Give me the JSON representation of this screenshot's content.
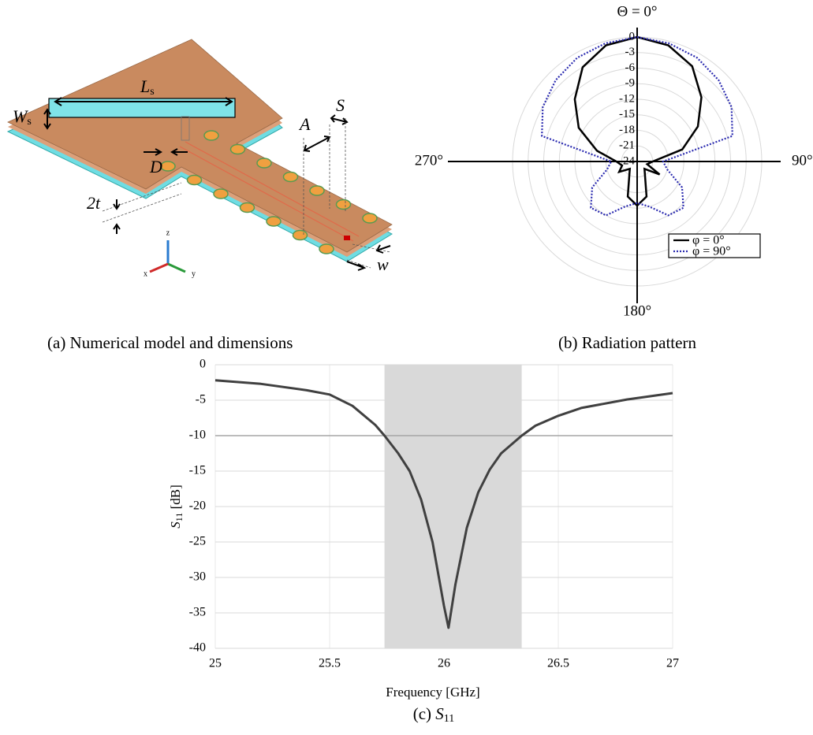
{
  "model": {
    "labels": {
      "Ls": {
        "main": "L",
        "sub": "s"
      },
      "Ws": {
        "main": "W",
        "sub": "s"
      },
      "S": "S",
      "A": "A",
      "D": "D",
      "t2": "2t",
      "w": "w",
      "axis_z": "z",
      "axis_y": "y",
      "axis_x": "x"
    }
  },
  "captions": {
    "a": "(a) Numerical model and dimensions",
    "b": "(b) Radiation pattern",
    "c": {
      "prefix": "(c) ",
      "main": "S",
      "sub": "11"
    }
  },
  "chart_data": [
    {
      "type": "polar",
      "angle_labels": [
        {
          "value": 0,
          "label": "Θ = 0°"
        },
        {
          "value": 90,
          "label": "90°"
        },
        {
          "value": 180,
          "label": "180°"
        },
        {
          "value": 270,
          "label": "270°"
        }
      ],
      "rlim": [
        -24,
        0
      ],
      "rticks": [
        0,
        -3,
        -6,
        -9,
        -12,
        -15,
        -18,
        -21,
        -24
      ],
      "theta": [
        0,
        15,
        30,
        45,
        60,
        75,
        90,
        105,
        120,
        135,
        150,
        165,
        180,
        195,
        210,
        225,
        240,
        255,
        270,
        285,
        300,
        315,
        330,
        345
      ],
      "legend": "lower right",
      "series": [
        {
          "name": "φ = 0°",
          "color": "#000000",
          "style": "solid",
          "values": [
            0,
            -0.8,
            -2.8,
            -6.5,
            -10.5,
            -15,
            -21,
            -22,
            -19,
            -22,
            -21,
            -17,
            -15.5,
            -17,
            -21,
            -22,
            -20,
            -21,
            -20,
            -16,
            -11,
            -7,
            -3,
            -0.8
          ]
        },
        {
          "name": "φ = 90°",
          "color": "#2b2bb0",
          "style": "dotted",
          "values": [
            0,
            -0.4,
            -0.9,
            -1.8,
            -3,
            -5,
            -19,
            -18,
            -14,
            -11.4,
            -12,
            -15,
            -16,
            -15,
            -12,
            -11.4,
            -14,
            -18,
            -19,
            -5,
            -3,
            -1.8,
            -0.9,
            -0.4
          ]
        }
      ]
    },
    {
      "type": "line",
      "x_label": "Frequency [GHz]",
      "y_label": {
        "main": "S",
        "sub": "11",
        "rest": " [dB]"
      },
      "x": [
        25,
        25.2,
        25.4,
        25.5,
        25.6,
        25.7,
        25.74,
        25.8,
        25.85,
        25.9,
        25.95,
        26.0,
        26.02,
        26.05,
        26.1,
        26.15,
        26.2,
        26.25,
        26.34,
        26.4,
        26.5,
        26.6,
        26.8,
        27
      ],
      "series": [
        {
          "color": "#404040",
          "values": [
            -2.2,
            -2.7,
            -3.6,
            -4.2,
            -5.8,
            -8.5,
            -10,
            -12.5,
            -15,
            -19,
            -25,
            -34,
            -37.1,
            -31,
            -23,
            -18,
            -14.8,
            -12.5,
            -10,
            -8.6,
            -7.2,
            -6.1,
            -4.9,
            -4.0
          ]
        }
      ],
      "band": [
        25.74,
        26.34
      ],
      "threshold": -10,
      "xlim": [
        25,
        27
      ],
      "xticks": [
        25,
        25.5,
        26,
        26.5,
        27
      ],
      "ylim": [
        -40,
        0
      ],
      "yticks": [
        0,
        -5,
        -10,
        -15,
        -20,
        -25,
        -30,
        -35,
        -40
      ],
      "grid": true
    }
  ]
}
